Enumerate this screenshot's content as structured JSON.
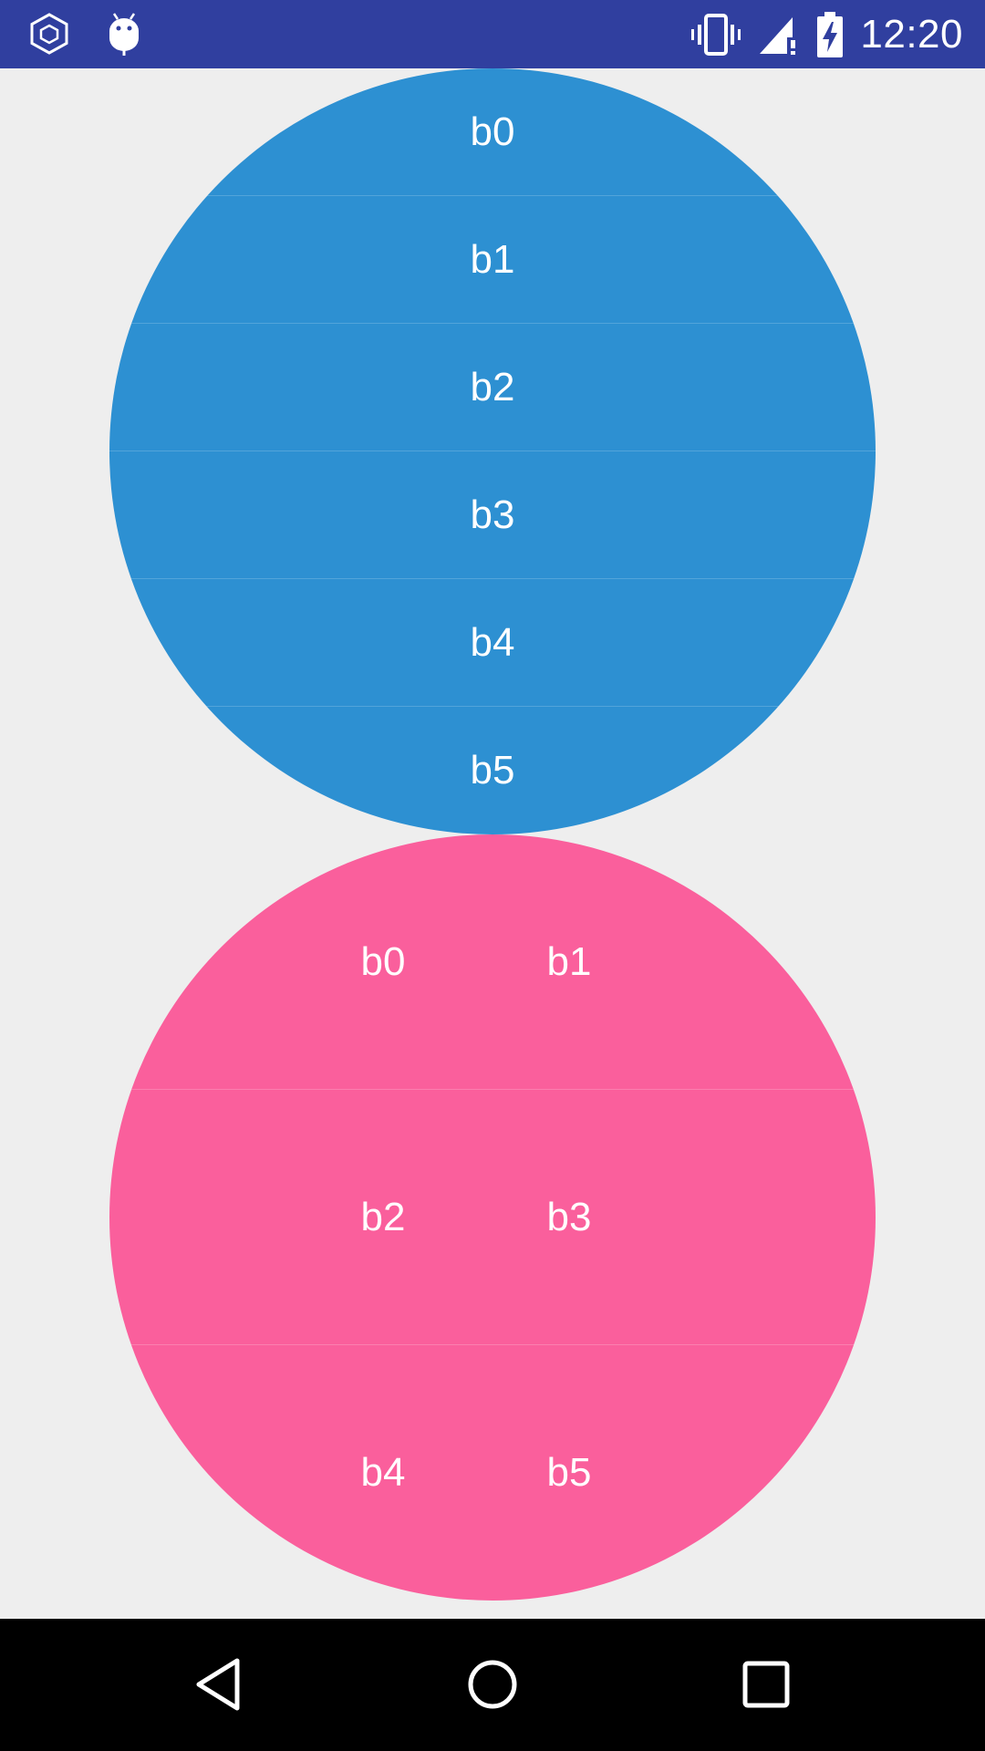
{
  "status_bar": {
    "time": "12:20",
    "left_icons": [
      "hexagon-notification-icon",
      "android-debug-icon"
    ],
    "right_icons": [
      "vibrate-icon",
      "signal-icon",
      "battery-charging-icon"
    ],
    "colors": {
      "background": "#303f9f",
      "foreground": "#ffffff"
    }
  },
  "blue_circle": {
    "color": "#2d90d2",
    "buttons": [
      "b0",
      "b1",
      "b2",
      "b3",
      "b4",
      "b5"
    ]
  },
  "pink_circle": {
    "color": "#fa5f9c",
    "rows": [
      {
        "left": "b0",
        "right": "b1"
      },
      {
        "left": "b2",
        "right": "b3"
      },
      {
        "left": "b4",
        "right": "b5"
      }
    ]
  },
  "nav_bar": {
    "buttons": [
      "back-icon",
      "home-icon",
      "recents-icon"
    ],
    "color": "#000000"
  },
  "background": "#eeeeee"
}
